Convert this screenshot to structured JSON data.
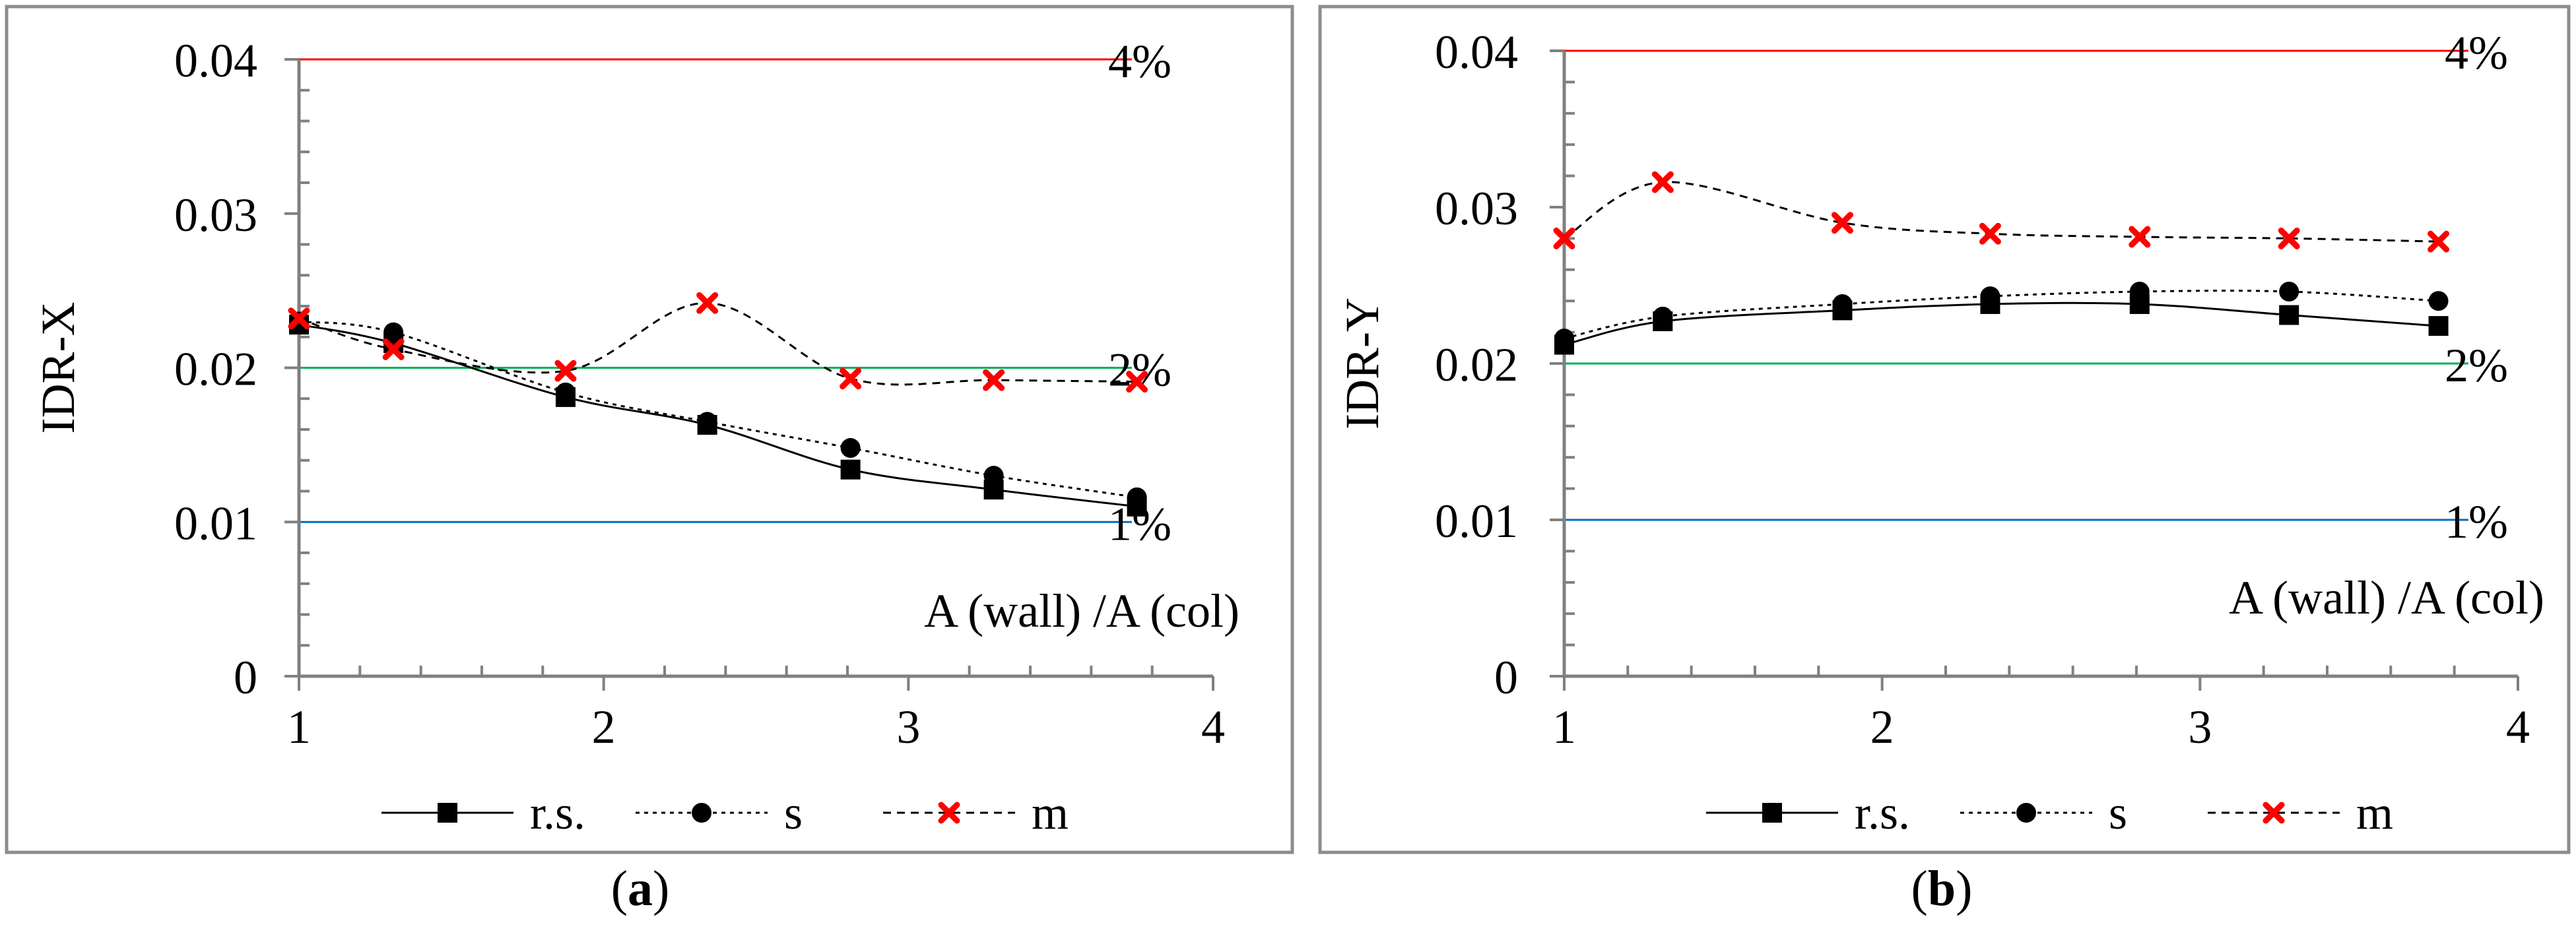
{
  "colors": {
    "frame": "#8c8c8c",
    "axis": "#808080",
    "rs": "#000000",
    "s": "#000000",
    "m": "#ff0000",
    "ref4": "#ff0000",
    "ref2": "#00b050",
    "ref1": "#0070c0"
  },
  "chart_data": [
    {
      "type": "line",
      "panel_label": "(a)",
      "panel_letter": "a",
      "ylabel": "IDR-X",
      "xlabel": "A (wall) /A (col)",
      "xlim": [
        1,
        4
      ],
      "ylim": [
        0,
        0.04
      ],
      "x_ticks": [
        "1",
        "2",
        "3",
        "4"
      ],
      "y_ticks": [
        "0",
        "0.01",
        "0.02",
        "0.03",
        "0.04"
      ],
      "x_tick_values": [
        1,
        2,
        3,
        4
      ],
      "y_tick_values": [
        0,
        0.01,
        0.02,
        0.03,
        0.04
      ],
      "reference_lines": [
        {
          "name": "4% limit",
          "value": 0.04,
          "label": "4%",
          "color": "#ff0000"
        },
        {
          "name": "2% limit",
          "value": 0.02,
          "label": "2%",
          "color": "#00b050"
        },
        {
          "name": "1% limit",
          "value": 0.01,
          "label": "1%",
          "color": "#0070c0"
        }
      ],
      "x": [
        1,
        1.31,
        1.875,
        2.34,
        2.81,
        3.28,
        3.75
      ],
      "series": [
        {
          "name": "r.s.",
          "marker": "square",
          "line": "solid",
          "values": [
            0.0228,
            0.0216,
            0.0181,
            0.0163,
            0.0134,
            0.0121,
            0.011
          ]
        },
        {
          "name": "s",
          "marker": "circle",
          "line": "dotted",
          "values": [
            0.023,
            0.0223,
            0.0184,
            0.0165,
            0.0148,
            0.013,
            0.0116
          ]
        },
        {
          "name": "m",
          "marker": "x",
          "line": "dashed",
          "values": [
            0.0232,
            0.0212,
            0.0198,
            0.0242,
            0.0193,
            0.0192,
            0.0191
          ]
        }
      ]
    },
    {
      "type": "line",
      "panel_label": "(b)",
      "panel_letter": "b",
      "ylabel": "IDR-Y",
      "xlabel": "A (wall) /A (col)",
      "xlim": [
        1,
        4
      ],
      "ylim": [
        0,
        0.04
      ],
      "x_ticks": [
        "1",
        "2",
        "3",
        "4"
      ],
      "y_ticks": [
        "0",
        "0.01",
        "0.02",
        "0.03",
        "0.04"
      ],
      "x_tick_values": [
        1,
        2,
        3,
        4
      ],
      "y_tick_values": [
        0,
        0.01,
        0.02,
        0.03,
        0.04
      ],
      "reference_lines": [
        {
          "name": "4% limit",
          "value": 0.04,
          "label": "4%",
          "color": "#ff0000"
        },
        {
          "name": "2% limit",
          "value": 0.02,
          "label": "2%",
          "color": "#00b050"
        },
        {
          "name": "1% limit",
          "value": 0.01,
          "label": "1%",
          "color": "#0070c0"
        }
      ],
      "x": [
        1,
        1.31,
        1.875,
        2.34,
        2.81,
        3.28,
        3.75
      ],
      "series": [
        {
          "name": "r.s.",
          "marker": "square",
          "line": "solid",
          "values": [
            0.0212,
            0.0227,
            0.0234,
            0.0238,
            0.0238,
            0.0231,
            0.0224
          ]
        },
        {
          "name": "s",
          "marker": "circle",
          "line": "dotted",
          "values": [
            0.0216,
            0.023,
            0.0238,
            0.0243,
            0.0246,
            0.0246,
            0.024
          ]
        },
        {
          "name": "m",
          "marker": "x",
          "line": "dashed",
          "values": [
            0.028,
            0.0316,
            0.029,
            0.0283,
            0.0281,
            0.028,
            0.0278
          ]
        }
      ]
    }
  ]
}
